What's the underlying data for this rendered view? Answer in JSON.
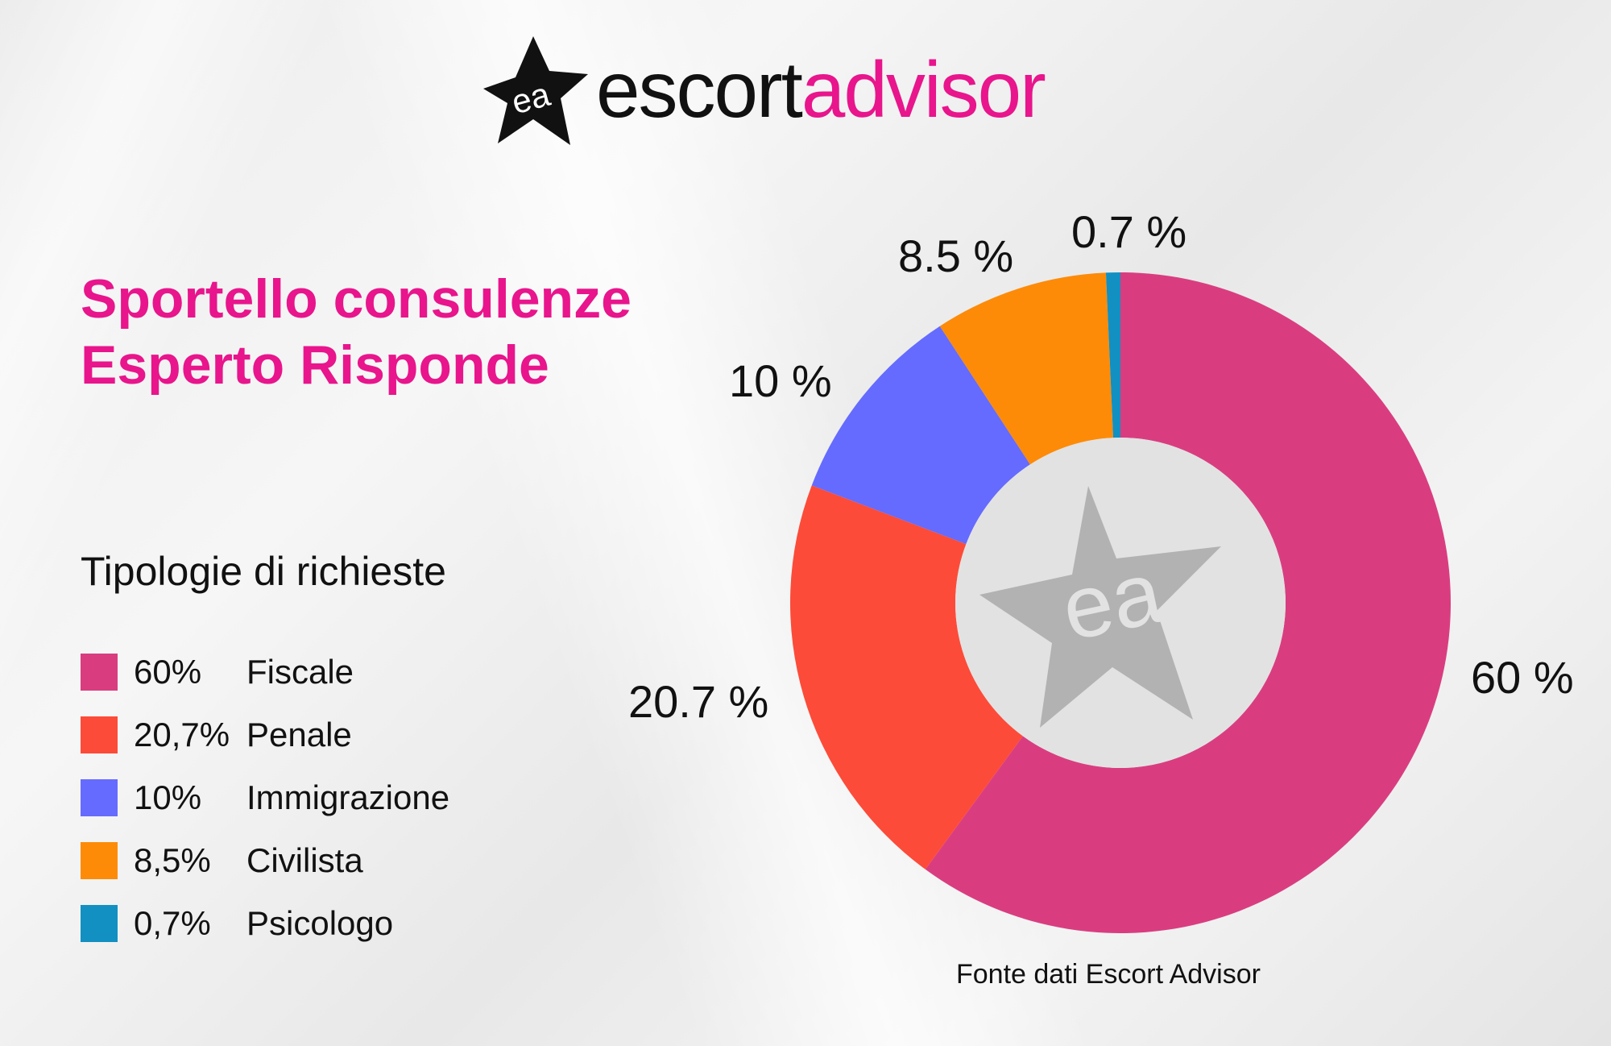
{
  "brand": {
    "logo_mark": "ea",
    "name_part1": "escort",
    "name_part2": "advisor",
    "accent_color": "#e8158c"
  },
  "header": {
    "title_line1": "Sportello consulenze",
    "title_line2": "Esperto Risponde"
  },
  "legend": {
    "heading": "Tipologie di richieste",
    "items": [
      {
        "pct": "60%",
        "label": "Fiscale",
        "color": "#d93d80"
      },
      {
        "pct": "20,7%",
        "label": "Penale",
        "color": "#fd4b39"
      },
      {
        "pct": "10%",
        "label": "Immigrazione",
        "color": "#656bfe"
      },
      {
        "pct": "8,5%",
        "label": "Civilista",
        "color": "#fd8b08"
      },
      {
        "pct": "0,7%",
        "label": "Psicologo",
        "color": "#1290c2"
      }
    ]
  },
  "slice_labels": {
    "fiscale": "60 %",
    "penale": "20.7 %",
    "immigrazione": "10 %",
    "civilista": "8.5 %",
    "psicologo": "0.7 %"
  },
  "center_watermark": "ea",
  "source": "Fonte dati Escort Advisor",
  "chart_data": {
    "type": "pie",
    "variant": "donut",
    "title": "Sportello consulenze Esperto Risponde",
    "subtitle": "Tipologie di richieste",
    "categories": [
      "Fiscale",
      "Penale",
      "Immigrazione",
      "Civilista",
      "Psicologo"
    ],
    "values": [
      60,
      20.7,
      10,
      8.5,
      0.7
    ],
    "unit": "%",
    "colors": [
      "#d93d80",
      "#fd4b39",
      "#656bfe",
      "#fd8b08",
      "#1290c2"
    ],
    "data_labels": [
      "60 %",
      "20.7 %",
      "10 %",
      "8.5 %",
      "0.7 %"
    ],
    "start_angle": "12 o'clock, clockwise",
    "legend_position": "left",
    "source": "Fonte dati Escort Advisor"
  }
}
